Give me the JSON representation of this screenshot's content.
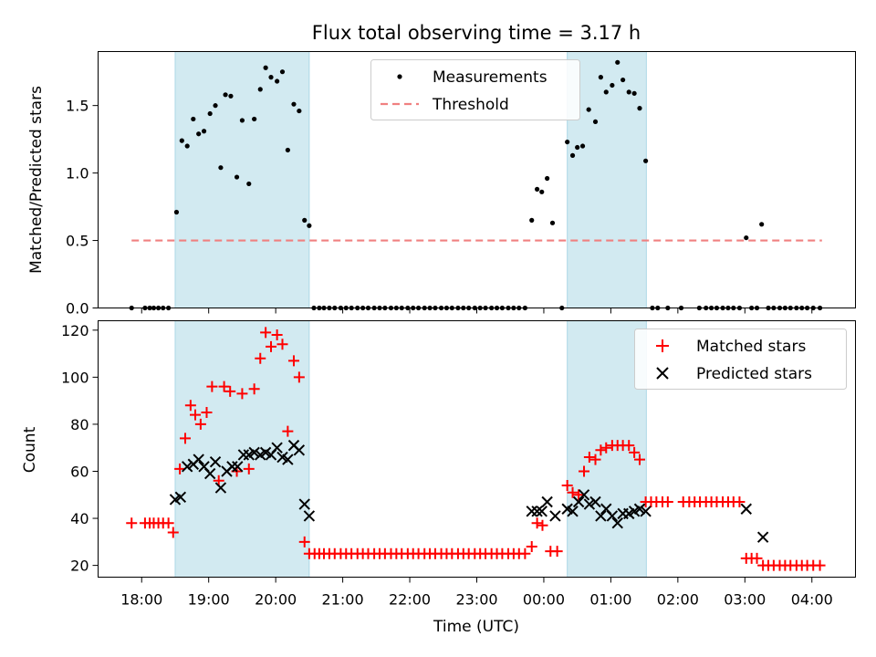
{
  "chart_data": {
    "type": "scatter",
    "title": "Flux total observing time = 3.17 h",
    "xlabel": "Time (UTC)",
    "x_ticks": [
      "18:00",
      "19:00",
      "20:00",
      "21:00",
      "22:00",
      "23:00",
      "00:00",
      "01:00",
      "02:00",
      "03:00",
      "04:00"
    ],
    "x_tick_hours": [
      18,
      19,
      20,
      21,
      22,
      23,
      24,
      25,
      26,
      27,
      28
    ],
    "x_range_hours": [
      17.35,
      28.65
    ],
    "shaded_intervals_hours": [
      [
        18.5,
        20.5
      ],
      [
        24.35,
        25.53
      ]
    ],
    "shade_color": "#add8e6",
    "top_panel": {
      "ylabel": "Matched/Predicted stars",
      "ylim": [
        0,
        1.9
      ],
      "yticks": [
        0.0,
        0.5,
        1.0,
        1.5
      ],
      "ytick_labels": [
        "0.0",
        "0.5",
        "1.0",
        "1.5"
      ],
      "legend_position": "top-center",
      "legend": [
        "Measurements",
        "Threshold"
      ],
      "threshold": {
        "name": "Threshold",
        "value": 0.5,
        "x_start": 17.85,
        "x_end": 28.15,
        "color": "#f08080"
      },
      "measurements": {
        "name": "Measurements",
        "color": "#000000",
        "points": [
          [
            17.85,
            0
          ],
          [
            18.05,
            0
          ],
          [
            18.12,
            0
          ],
          [
            18.18,
            0
          ],
          [
            18.25,
            0
          ],
          [
            18.32,
            0
          ],
          [
            18.4,
            0
          ],
          [
            18.52,
            0.71
          ],
          [
            18.6,
            1.24
          ],
          [
            18.68,
            1.2
          ],
          [
            18.77,
            1.4
          ],
          [
            18.85,
            1.29
          ],
          [
            18.93,
            1.31
          ],
          [
            19.02,
            1.44
          ],
          [
            19.1,
            1.5
          ],
          [
            19.18,
            1.04
          ],
          [
            19.25,
            1.58
          ],
          [
            19.33,
            1.57
          ],
          [
            19.42,
            0.97
          ],
          [
            19.5,
            1.39
          ],
          [
            19.6,
            0.92
          ],
          [
            19.68,
            1.4
          ],
          [
            19.77,
            1.62
          ],
          [
            19.85,
            1.78
          ],
          [
            19.93,
            1.71
          ],
          [
            20.02,
            1.68
          ],
          [
            20.1,
            1.75
          ],
          [
            20.18,
            1.17
          ],
          [
            20.27,
            1.51
          ],
          [
            20.35,
            1.46
          ],
          [
            20.43,
            0.65
          ],
          [
            20.5,
            0.61
          ],
          [
            20.57,
            0
          ],
          [
            20.65,
            0
          ],
          [
            20.72,
            0
          ],
          [
            20.8,
            0
          ],
          [
            20.88,
            0
          ],
          [
            20.97,
            0
          ],
          [
            21.05,
            0
          ],
          [
            21.13,
            0
          ],
          [
            21.22,
            0
          ],
          [
            21.3,
            0
          ],
          [
            21.38,
            0
          ],
          [
            21.47,
            0
          ],
          [
            21.55,
            0
          ],
          [
            21.63,
            0
          ],
          [
            21.72,
            0
          ],
          [
            21.8,
            0
          ],
          [
            21.88,
            0
          ],
          [
            21.97,
            0
          ],
          [
            22.05,
            0
          ],
          [
            22.13,
            0
          ],
          [
            22.22,
            0
          ],
          [
            22.3,
            0
          ],
          [
            22.38,
            0
          ],
          [
            22.47,
            0
          ],
          [
            22.55,
            0
          ],
          [
            22.63,
            0
          ],
          [
            22.72,
            0
          ],
          [
            22.8,
            0
          ],
          [
            22.88,
            0
          ],
          [
            22.97,
            0
          ],
          [
            23.05,
            0
          ],
          [
            23.13,
            0
          ],
          [
            23.22,
            0
          ],
          [
            23.3,
            0
          ],
          [
            23.38,
            0
          ],
          [
            23.47,
            0
          ],
          [
            23.55,
            0
          ],
          [
            23.63,
            0
          ],
          [
            23.72,
            0
          ],
          [
            23.82,
            0.65
          ],
          [
            23.9,
            0.88
          ],
          [
            23.97,
            0.86
          ],
          [
            24.05,
            0.96
          ],
          [
            24.13,
            0.63
          ],
          [
            24.27,
            0
          ],
          [
            24.35,
            1.23
          ],
          [
            24.43,
            1.13
          ],
          [
            24.5,
            1.19
          ],
          [
            24.58,
            1.2
          ],
          [
            24.67,
            1.47
          ],
          [
            24.77,
            1.38
          ],
          [
            24.85,
            1.71
          ],
          [
            24.93,
            1.6
          ],
          [
            25.02,
            1.65
          ],
          [
            25.1,
            1.82
          ],
          [
            25.18,
            1.69
          ],
          [
            25.27,
            1.6
          ],
          [
            25.35,
            1.59
          ],
          [
            25.43,
            1.48
          ],
          [
            25.52,
            1.09
          ],
          [
            25.62,
            0
          ],
          [
            25.7,
            0
          ],
          [
            25.85,
            0
          ],
          [
            26.05,
            0
          ],
          [
            26.32,
            0
          ],
          [
            26.42,
            0
          ],
          [
            26.5,
            0
          ],
          [
            26.58,
            0
          ],
          [
            26.67,
            0
          ],
          [
            26.75,
            0
          ],
          [
            26.83,
            0
          ],
          [
            26.92,
            0
          ],
          [
            27.02,
            0.52
          ],
          [
            27.1,
            0
          ],
          [
            27.18,
            0
          ],
          [
            27.25,
            0.62
          ],
          [
            27.35,
            0
          ],
          [
            27.43,
            0
          ],
          [
            27.52,
            0
          ],
          [
            27.6,
            0
          ],
          [
            27.68,
            0
          ],
          [
            27.77,
            0
          ],
          [
            27.85,
            0
          ],
          [
            27.93,
            0
          ],
          [
            28.02,
            0
          ],
          [
            28.12,
            0
          ]
        ]
      }
    },
    "bottom_panel": {
      "ylabel": "Count",
      "ylim": [
        15,
        124
      ],
      "yticks": [
        20,
        40,
        60,
        80,
        100,
        120
      ],
      "ytick_labels": [
        "20",
        "40",
        "60",
        "80",
        "100",
        "120"
      ],
      "legend_position": "top-right",
      "legend": [
        "Matched stars",
        "Predicted stars"
      ],
      "matched": {
        "name": "Matched stars",
        "color": "#ff0000",
        "points": [
          [
            17.85,
            38
          ],
          [
            18.05,
            38
          ],
          [
            18.12,
            38
          ],
          [
            18.18,
            38
          ],
          [
            18.25,
            38
          ],
          [
            18.32,
            38
          ],
          [
            18.4,
            38
          ],
          [
            18.47,
            34
          ],
          [
            18.57,
            61
          ],
          [
            18.65,
            74
          ],
          [
            18.73,
            88
          ],
          [
            18.8,
            84
          ],
          [
            18.88,
            80
          ],
          [
            18.97,
            85
          ],
          [
            19.05,
            96
          ],
          [
            19.15,
            56
          ],
          [
            19.23,
            96
          ],
          [
            19.32,
            94
          ],
          [
            19.42,
            60
          ],
          [
            19.5,
            93
          ],
          [
            19.6,
            61
          ],
          [
            19.68,
            95
          ],
          [
            19.77,
            108
          ],
          [
            19.85,
            119
          ],
          [
            19.93,
            113
          ],
          [
            20.02,
            118
          ],
          [
            20.1,
            114
          ],
          [
            20.18,
            77
          ],
          [
            20.27,
            107
          ],
          [
            20.35,
            100
          ],
          [
            20.43,
            30
          ],
          [
            20.5,
            25
          ],
          [
            20.58,
            25
          ],
          [
            20.65,
            25
          ],
          [
            20.72,
            25
          ],
          [
            20.8,
            25
          ],
          [
            20.88,
            25
          ],
          [
            20.97,
            25
          ],
          [
            21.05,
            25
          ],
          [
            21.13,
            25
          ],
          [
            21.22,
            25
          ],
          [
            21.3,
            25
          ],
          [
            21.38,
            25
          ],
          [
            21.47,
            25
          ],
          [
            21.55,
            25
          ],
          [
            21.63,
            25
          ],
          [
            21.72,
            25
          ],
          [
            21.8,
            25
          ],
          [
            21.88,
            25
          ],
          [
            21.97,
            25
          ],
          [
            22.05,
            25
          ],
          [
            22.13,
            25
          ],
          [
            22.22,
            25
          ],
          [
            22.3,
            25
          ],
          [
            22.38,
            25
          ],
          [
            22.47,
            25
          ],
          [
            22.55,
            25
          ],
          [
            22.63,
            25
          ],
          [
            22.72,
            25
          ],
          [
            22.8,
            25
          ],
          [
            22.88,
            25
          ],
          [
            22.97,
            25
          ],
          [
            23.05,
            25
          ],
          [
            23.13,
            25
          ],
          [
            23.22,
            25
          ],
          [
            23.3,
            25
          ],
          [
            23.38,
            25
          ],
          [
            23.47,
            25
          ],
          [
            23.55,
            25
          ],
          [
            23.63,
            25
          ],
          [
            23.72,
            25
          ],
          [
            23.82,
            28
          ],
          [
            23.9,
            38
          ],
          [
            23.98,
            37
          ],
          [
            24.1,
            26
          ],
          [
            24.2,
            26
          ],
          [
            24.35,
            54
          ],
          [
            24.43,
            51
          ],
          [
            24.52,
            50
          ],
          [
            24.6,
            60
          ],
          [
            24.68,
            66
          ],
          [
            24.77,
            65
          ],
          [
            24.85,
            69
          ],
          [
            24.93,
            70
          ],
          [
            25.02,
            71
          ],
          [
            25.1,
            71
          ],
          [
            25.18,
            71
          ],
          [
            25.27,
            71
          ],
          [
            25.35,
            68
          ],
          [
            25.43,
            65
          ],
          [
            25.52,
            47
          ],
          [
            25.6,
            47
          ],
          [
            25.68,
            47
          ],
          [
            25.77,
            47
          ],
          [
            25.85,
            47
          ],
          [
            26.08,
            47
          ],
          [
            26.17,
            47
          ],
          [
            26.25,
            47
          ],
          [
            26.33,
            47
          ],
          [
            26.42,
            47
          ],
          [
            26.5,
            47
          ],
          [
            26.58,
            47
          ],
          [
            26.67,
            47
          ],
          [
            26.75,
            47
          ],
          [
            26.83,
            47
          ],
          [
            26.92,
            47
          ],
          [
            27.02,
            23
          ],
          [
            27.1,
            23
          ],
          [
            27.18,
            23
          ],
          [
            27.27,
            20
          ],
          [
            27.35,
            20
          ],
          [
            27.43,
            20
          ],
          [
            27.52,
            20
          ],
          [
            27.6,
            20
          ],
          [
            27.68,
            20
          ],
          [
            27.77,
            20
          ],
          [
            27.85,
            20
          ],
          [
            27.93,
            20
          ],
          [
            28.02,
            20
          ],
          [
            28.12,
            20
          ]
        ]
      },
      "predicted": {
        "name": "Predicted stars",
        "color": "#000000",
        "points": [
          [
            18.5,
            48
          ],
          [
            18.58,
            49
          ],
          [
            18.68,
            62
          ],
          [
            18.77,
            63
          ],
          [
            18.85,
            65
          ],
          [
            18.93,
            62
          ],
          [
            19.02,
            59
          ],
          [
            19.1,
            64
          ],
          [
            19.18,
            53
          ],
          [
            19.27,
            60
          ],
          [
            19.35,
            62
          ],
          [
            19.43,
            62
          ],
          [
            19.52,
            67
          ],
          [
            19.6,
            67
          ],
          [
            19.68,
            68
          ],
          [
            19.77,
            67
          ],
          [
            19.85,
            68
          ],
          [
            19.93,
            67
          ],
          [
            20.02,
            70
          ],
          [
            20.1,
            66
          ],
          [
            20.18,
            65
          ],
          [
            20.27,
            71
          ],
          [
            20.35,
            69
          ],
          [
            20.43,
            46
          ],
          [
            20.5,
            41
          ],
          [
            23.82,
            43
          ],
          [
            23.9,
            43
          ],
          [
            23.97,
            43
          ],
          [
            24.05,
            47
          ],
          [
            24.17,
            41
          ],
          [
            24.35,
            44
          ],
          [
            24.43,
            43
          ],
          [
            24.52,
            47
          ],
          [
            24.6,
            50
          ],
          [
            24.68,
            46
          ],
          [
            24.77,
            47
          ],
          [
            24.85,
            41
          ],
          [
            24.93,
            44
          ],
          [
            25.02,
            41
          ],
          [
            25.1,
            38
          ],
          [
            25.18,
            42
          ],
          [
            25.27,
            42
          ],
          [
            25.35,
            43
          ],
          [
            25.43,
            44
          ],
          [
            25.52,
            43
          ],
          [
            27.02,
            44
          ],
          [
            27.27,
            32
          ]
        ]
      }
    }
  }
}
